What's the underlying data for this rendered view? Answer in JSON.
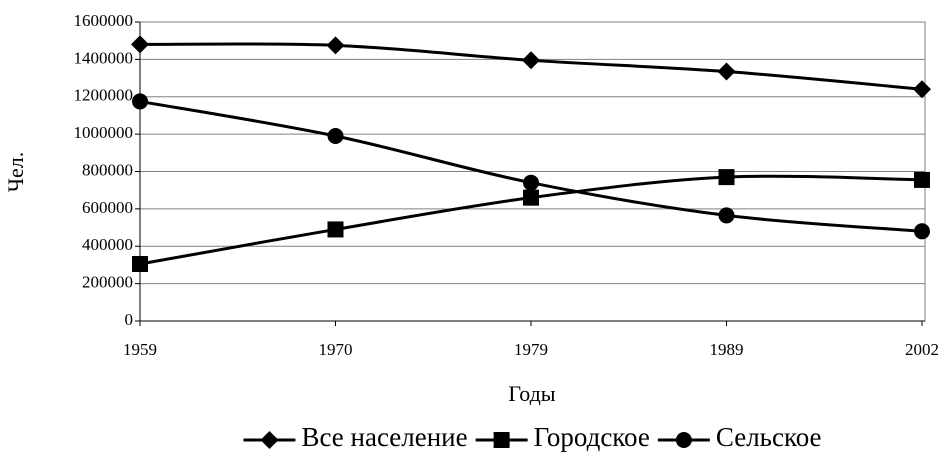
{
  "chart_data": {
    "type": "line",
    "y_label": "Чел.",
    "x_label": "Годы",
    "categories": [
      "1959",
      "1970",
      "1979",
      "1989",
      "2002"
    ],
    "series": [
      {
        "name": "Все население",
        "color": "#000000",
        "marker": "diamond",
        "values": [
          1480000,
          1475000,
          1395000,
          1335000,
          1240000
        ]
      },
      {
        "name": "Городское",
        "color": "#000000",
        "marker": "square",
        "values": [
          305000,
          490000,
          660000,
          770000,
          755000
        ]
      },
      {
        "name": "Сельское",
        "color": "#000000",
        "marker": "circle",
        "values": [
          1175000,
          990000,
          740000,
          565000,
          480000
        ]
      }
    ],
    "ylim": [
      0,
      1600000
    ],
    "yticks": [
      0,
      200000,
      400000,
      600000,
      800000,
      1000000,
      1200000,
      1400000,
      1600000
    ],
    "grid": true,
    "legend": "bottom"
  }
}
